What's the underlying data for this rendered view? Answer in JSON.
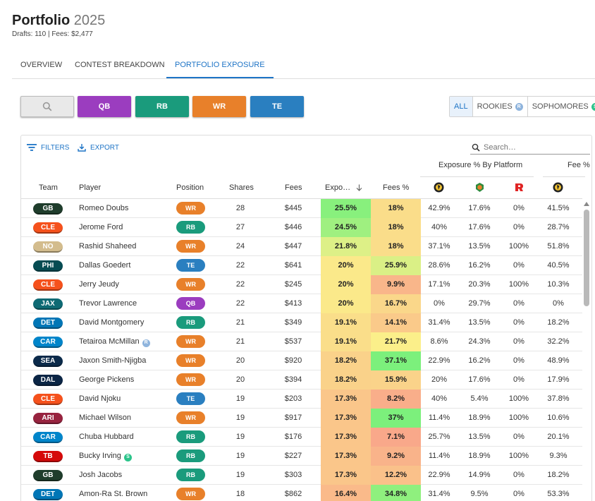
{
  "header": {
    "title": "Portfolio",
    "year": "2025",
    "subtitle": "Drafts: 110 | Fees: $2,477"
  },
  "tabs": [
    {
      "label": "OVERVIEW"
    },
    {
      "label": "CONTEST BREAKDOWN"
    },
    {
      "label": "PORTFOLIO EXPOSURE"
    }
  ],
  "position_filters": [
    {
      "label": "QB",
      "color": "#9b3dbf"
    },
    {
      "label": "RB",
      "color": "#1a9b7c"
    },
    {
      "label": "WR",
      "color": "#e8802a"
    },
    {
      "label": "TE",
      "color": "#2a7fc0"
    }
  ],
  "segment": {
    "all": "ALL",
    "rookies": "ROOKIES",
    "rookies_badge": "R",
    "sophomores": "SOPHOMORES",
    "sophomores_badge": "S"
  },
  "toolbar": {
    "filters": "FILTERS",
    "export": "EXPORT",
    "search_placeholder": "Search…"
  },
  "table": {
    "group_exposure": "Exposure % By Platform",
    "group_fee": "Fee % By Platform",
    "columns": {
      "team": "Team",
      "player": "Player",
      "position": "Position",
      "shares": "Shares",
      "fees": "Fees",
      "exposure": "Expo…",
      "fees_pct": "Fees %"
    },
    "rows": [
      {
        "team": "GB",
        "player": "Romeo Doubs",
        "pos": "WR",
        "shares": "28",
        "fees": "$445",
        "exposure": "25.5%",
        "fees_pct": "18%",
        "p1": "42.9%",
        "p2": "17.6%",
        "p3": "0%",
        "f1": "41.5%"
      },
      {
        "team": "CLE",
        "player": "Jerome Ford",
        "pos": "RB",
        "shares": "27",
        "fees": "$446",
        "exposure": "24.5%",
        "fees_pct": "18%",
        "p1": "40%",
        "p2": "17.6%",
        "p3": "0%",
        "f1": "28.7%"
      },
      {
        "team": "NO",
        "player": "Rashid Shaheed",
        "pos": "WR",
        "shares": "24",
        "fees": "$447",
        "exposure": "21.8%",
        "fees_pct": "18%",
        "p1": "37.1%",
        "p2": "13.5%",
        "p3": "100%",
        "f1": "51.8%"
      },
      {
        "team": "PHI",
        "player": "Dallas Goedert",
        "pos": "TE",
        "shares": "22",
        "fees": "$641",
        "exposure": "20%",
        "fees_pct": "25.9%",
        "p1": "28.6%",
        "p2": "16.2%",
        "p3": "0%",
        "f1": "40.5%"
      },
      {
        "team": "CLE",
        "player": "Jerry Jeudy",
        "pos": "WR",
        "shares": "22",
        "fees": "$245",
        "exposure": "20%",
        "fees_pct": "9.9%",
        "p1": "17.1%",
        "p2": "20.3%",
        "p3": "100%",
        "f1": "10.3%"
      },
      {
        "team": "JAX",
        "player": "Trevor Lawrence",
        "pos": "QB",
        "shares": "22",
        "fees": "$413",
        "exposure": "20%",
        "fees_pct": "16.7%",
        "p1": "0%",
        "p2": "29.7%",
        "p3": "0%",
        "f1": "0%"
      },
      {
        "team": "DET",
        "player": "David Montgomery",
        "pos": "RB",
        "shares": "21",
        "fees": "$349",
        "exposure": "19.1%",
        "fees_pct": "14.1%",
        "p1": "31.4%",
        "p2": "13.5%",
        "p3": "0%",
        "f1": "18.2%"
      },
      {
        "team": "CAR",
        "player": "Tetairoa McMillan",
        "badge": "R",
        "pos": "WR",
        "shares": "21",
        "fees": "$537",
        "exposure": "19.1%",
        "fees_pct": "21.7%",
        "p1": "8.6%",
        "p2": "24.3%",
        "p3": "0%",
        "f1": "32.2%"
      },
      {
        "team": "SEA",
        "player": "Jaxon Smith-Njigba",
        "pos": "WR",
        "shares": "20",
        "fees": "$920",
        "exposure": "18.2%",
        "fees_pct": "37.1%",
        "p1": "22.9%",
        "p2": "16.2%",
        "p3": "0%",
        "f1": "48.9%"
      },
      {
        "team": "DAL",
        "player": "George Pickens",
        "pos": "WR",
        "shares": "20",
        "fees": "$394",
        "exposure": "18.2%",
        "fees_pct": "15.9%",
        "p1": "20%",
        "p2": "17.6%",
        "p3": "0%",
        "f1": "17.9%"
      },
      {
        "team": "CLE",
        "player": "David Njoku",
        "pos": "TE",
        "shares": "19",
        "fees": "$203",
        "exposure": "17.3%",
        "fees_pct": "8.2%",
        "p1": "40%",
        "p2": "5.4%",
        "p3": "100%",
        "f1": "37.8%"
      },
      {
        "team": "ARI",
        "player": "Michael Wilson",
        "pos": "WR",
        "shares": "19",
        "fees": "$917",
        "exposure": "17.3%",
        "fees_pct": "37%",
        "p1": "11.4%",
        "p2": "18.9%",
        "p3": "100%",
        "f1": "10.6%"
      },
      {
        "team": "CAR",
        "player": "Chuba Hubbard",
        "pos": "RB",
        "shares": "19",
        "fees": "$176",
        "exposure": "17.3%",
        "fees_pct": "7.1%",
        "p1": "25.7%",
        "p2": "13.5%",
        "p3": "0%",
        "f1": "20.1%"
      },
      {
        "team": "TB",
        "player": "Bucky Irving",
        "badge": "S",
        "pos": "RB",
        "shares": "19",
        "fees": "$227",
        "exposure": "17.3%",
        "fees_pct": "9.2%",
        "p1": "11.4%",
        "p2": "18.9%",
        "p3": "100%",
        "f1": "9.3%"
      },
      {
        "team": "GB",
        "player": "Josh Jacobs",
        "pos": "RB",
        "shares": "19",
        "fees": "$303",
        "exposure": "17.3%",
        "fees_pct": "12.2%",
        "p1": "22.9%",
        "p2": "14.9%",
        "p3": "0%",
        "f1": "18.2%"
      },
      {
        "team": "DET",
        "player": "Amon-Ra St. Brown",
        "pos": "WR",
        "shares": "18",
        "fees": "$862",
        "exposure": "16.4%",
        "fees_pct": "34.8%",
        "p1": "31.4%",
        "p2": "9.5%",
        "p3": "0%",
        "f1": "53.3%"
      }
    ]
  },
  "colors": {
    "accent": "#1e74c6",
    "teams": {
      "GB": "#1f3d2c",
      "CLE": "#f5511c",
      "NO": "#d3bc8d",
      "PHI": "#064c53",
      "JAX": "#0e6a74",
      "DET": "#0076b6",
      "CAR": "#0085ca",
      "SEA": "#0b2a4a",
      "DAL": "#0b2545",
      "ARI": "#97233f",
      "TB": "#d50a0a"
    },
    "positions": {
      "QB": "#9b3dbf",
      "RB": "#1a9b7c",
      "WR": "#e8802a",
      "TE": "#2a7fc0"
    }
  }
}
